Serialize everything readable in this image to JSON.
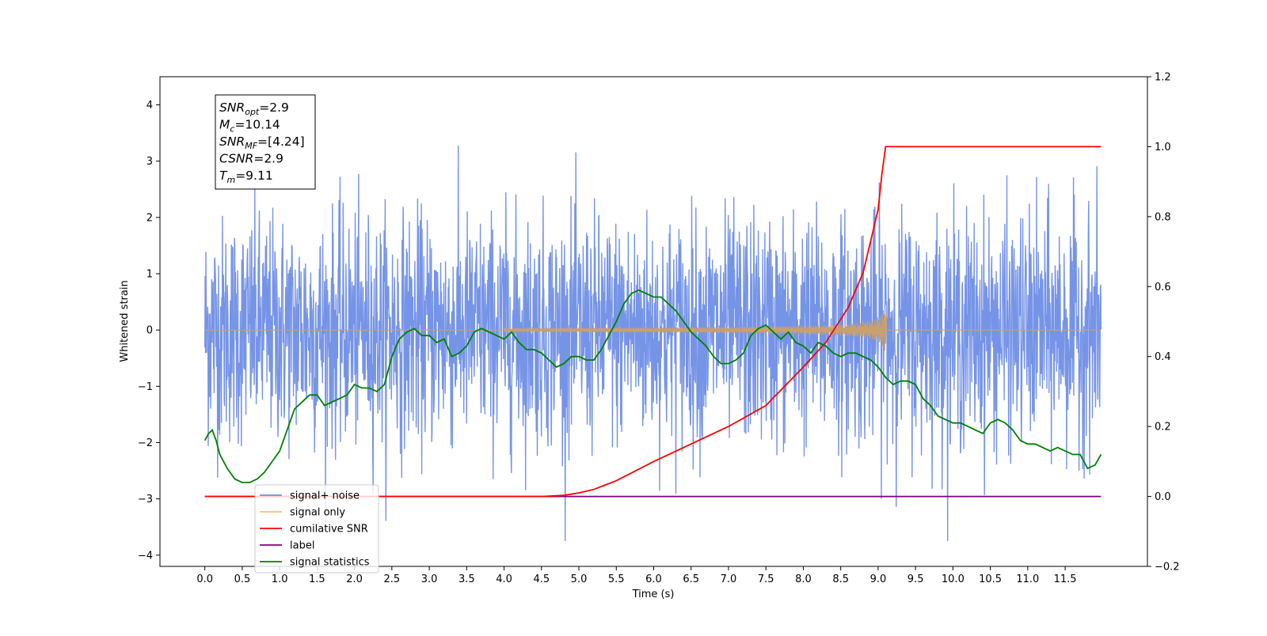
{
  "chart_data": {
    "type": "line",
    "xlabel": "Time (s)",
    "ylabel": "Whitened strain",
    "xlim": [
      -0.6,
      12.6
    ],
    "ylim_left": [
      -4.2,
      4.5
    ],
    "ylim_right": [
      -0.2,
      1.2
    ],
    "x_ticks": [
      0.0,
      0.5,
      1.0,
      1.5,
      2.0,
      2.5,
      3.0,
      3.5,
      4.0,
      4.5,
      5.0,
      5.5,
      6.0,
      6.5,
      7.0,
      7.5,
      8.0,
      8.5,
      9.0,
      9.5,
      10.0,
      10.5,
      11.0,
      11.5
    ],
    "x_tick_labels": [
      "0.0",
      "0.5",
      "1.0",
      "1.5",
      "2.0",
      "2.5",
      "3.0",
      "3.5",
      "4.0",
      "4.5",
      "5.0",
      "5.5",
      "6.0",
      "6.5",
      "7.0",
      "7.5",
      "8.0",
      "8.5",
      "9.0",
      "9.5",
      "10.0",
      "10.5",
      "11.0",
      "11.5"
    ],
    "y_left_ticks": [
      -4,
      -3,
      -2,
      -1,
      0,
      1,
      2,
      3,
      4
    ],
    "y_left_tick_labels": [
      "−4",
      "−3",
      "−2",
      "−1",
      "0",
      "1",
      "2",
      "3",
      "4"
    ],
    "y_right_ticks": [
      -0.2,
      0.0,
      0.2,
      0.4,
      0.6,
      0.8,
      1.0,
      1.2
    ],
    "y_right_tick_labels": [
      "−0.2",
      "0.0",
      "0.2",
      "0.4",
      "0.6",
      "0.8",
      "1.0",
      "1.2"
    ],
    "grid": false,
    "legend_position": "lower-left",
    "legend": [
      {
        "label": "signal+ noise",
        "color": "#6f8ee6"
      },
      {
        "label": "signal only",
        "color": "#ffc06a"
      },
      {
        "label": "cumilative SNR",
        "color": "#ff0000"
      },
      {
        "label": "label",
        "color": "#800080"
      },
      {
        "label": "signal statistics",
        "color": "#008000"
      }
    ],
    "stats_box": [
      {
        "name": "SNR",
        "sub": "opt",
        "value": "2.9"
      },
      {
        "name": "M",
        "sub": "c",
        "value": "10.14"
      },
      {
        "name": "SNR",
        "sub": "MF",
        "value": "[4.24]"
      },
      {
        "name": "CSNR",
        "sub": "",
        "value": "2.9"
      },
      {
        "name": "T",
        "sub": "m",
        "value": "9.11"
      }
    ],
    "series": [
      {
        "name": "signal+ noise",
        "axis": "left",
        "color": "#6f8ee6",
        "description_values": {
          "x_start": 0.0,
          "x_end": 11.98,
          "typical_range": [
            -2.0,
            2.0
          ],
          "max": 4.12,
          "min": -3.75
        }
      },
      {
        "name": "signal only",
        "axis": "left",
        "color": "#c8a070",
        "chirp": {
          "x_start": 4.0,
          "merger_x": 9.11,
          "peak_amplitude": 0.55
        }
      },
      {
        "name": "cumilative SNR",
        "axis": "right",
        "color": "#ff0000",
        "x": [
          0.0,
          4.0,
          4.5,
          4.8,
          5.0,
          5.2,
          5.5,
          6.0,
          6.5,
          7.0,
          7.5,
          8.0,
          8.3,
          8.6,
          8.8,
          9.0,
          9.05,
          9.1,
          11.98
        ],
        "values": [
          0.0,
          0.0,
          0.0,
          0.003,
          0.01,
          0.02,
          0.045,
          0.1,
          0.15,
          0.2,
          0.26,
          0.37,
          0.44,
          0.54,
          0.64,
          0.82,
          0.92,
          1.0,
          1.0
        ]
      },
      {
        "name": "label",
        "axis": "right",
        "color": "#800080",
        "x": [
          0.0,
          11.98
        ],
        "values": [
          0.0,
          0.0
        ]
      },
      {
        "name": "signal statistics",
        "axis": "right",
        "color": "#008000",
        "x": [
          0.0,
          0.05,
          0.1,
          0.15,
          0.2,
          0.3,
          0.4,
          0.5,
          0.6,
          0.7,
          0.8,
          0.9,
          1.0,
          1.1,
          1.2,
          1.3,
          1.4,
          1.5,
          1.6,
          1.7,
          1.8,
          1.9,
          2.0,
          2.1,
          2.2,
          2.3,
          2.4,
          2.5,
          2.6,
          2.7,
          2.8,
          2.9,
          3.0,
          3.1,
          3.2,
          3.3,
          3.4,
          3.5,
          3.6,
          3.7,
          3.8,
          3.9,
          4.0,
          4.1,
          4.2,
          4.3,
          4.4,
          4.5,
          4.6,
          4.7,
          4.8,
          4.9,
          5.0,
          5.1,
          5.2,
          5.3,
          5.4,
          5.5,
          5.6,
          5.7,
          5.8,
          5.9,
          6.0,
          6.1,
          6.2,
          6.3,
          6.4,
          6.5,
          6.6,
          6.7,
          6.8,
          6.9,
          7.0,
          7.1,
          7.2,
          7.3,
          7.4,
          7.5,
          7.6,
          7.7,
          7.8,
          7.9,
          8.0,
          8.1,
          8.2,
          8.3,
          8.4,
          8.5,
          8.6,
          8.7,
          8.8,
          8.9,
          9.0,
          9.1,
          9.2,
          9.3,
          9.4,
          9.5,
          9.6,
          9.7,
          9.8,
          9.9,
          10.0,
          10.1,
          10.2,
          10.3,
          10.4,
          10.5,
          10.6,
          10.7,
          10.8,
          10.9,
          11.0,
          11.1,
          11.2,
          11.3,
          11.4,
          11.5,
          11.6,
          11.7,
          11.8,
          11.9,
          11.98
        ],
        "values": [
          0.16,
          0.18,
          0.19,
          0.16,
          0.12,
          0.08,
          0.05,
          0.04,
          0.04,
          0.05,
          0.07,
          0.1,
          0.13,
          0.19,
          0.25,
          0.27,
          0.29,
          0.29,
          0.26,
          0.27,
          0.28,
          0.29,
          0.32,
          0.31,
          0.31,
          0.3,
          0.32,
          0.4,
          0.45,
          0.47,
          0.48,
          0.46,
          0.46,
          0.44,
          0.45,
          0.4,
          0.41,
          0.43,
          0.47,
          0.48,
          0.47,
          0.46,
          0.45,
          0.47,
          0.44,
          0.42,
          0.42,
          0.41,
          0.39,
          0.37,
          0.38,
          0.4,
          0.4,
          0.39,
          0.39,
          0.42,
          0.46,
          0.5,
          0.55,
          0.58,
          0.59,
          0.58,
          0.57,
          0.57,
          0.55,
          0.53,
          0.5,
          0.47,
          0.45,
          0.43,
          0.4,
          0.38,
          0.38,
          0.39,
          0.41,
          0.46,
          0.48,
          0.49,
          0.47,
          0.45,
          0.47,
          0.44,
          0.43,
          0.41,
          0.44,
          0.43,
          0.41,
          0.4,
          0.41,
          0.41,
          0.4,
          0.39,
          0.37,
          0.34,
          0.32,
          0.33,
          0.33,
          0.32,
          0.28,
          0.26,
          0.23,
          0.22,
          0.21,
          0.21,
          0.2,
          0.19,
          0.18,
          0.21,
          0.22,
          0.21,
          0.19,
          0.16,
          0.15,
          0.15,
          0.14,
          0.13,
          0.14,
          0.13,
          0.12,
          0.12,
          0.08,
          0.09,
          0.12
        ]
      }
    ]
  }
}
